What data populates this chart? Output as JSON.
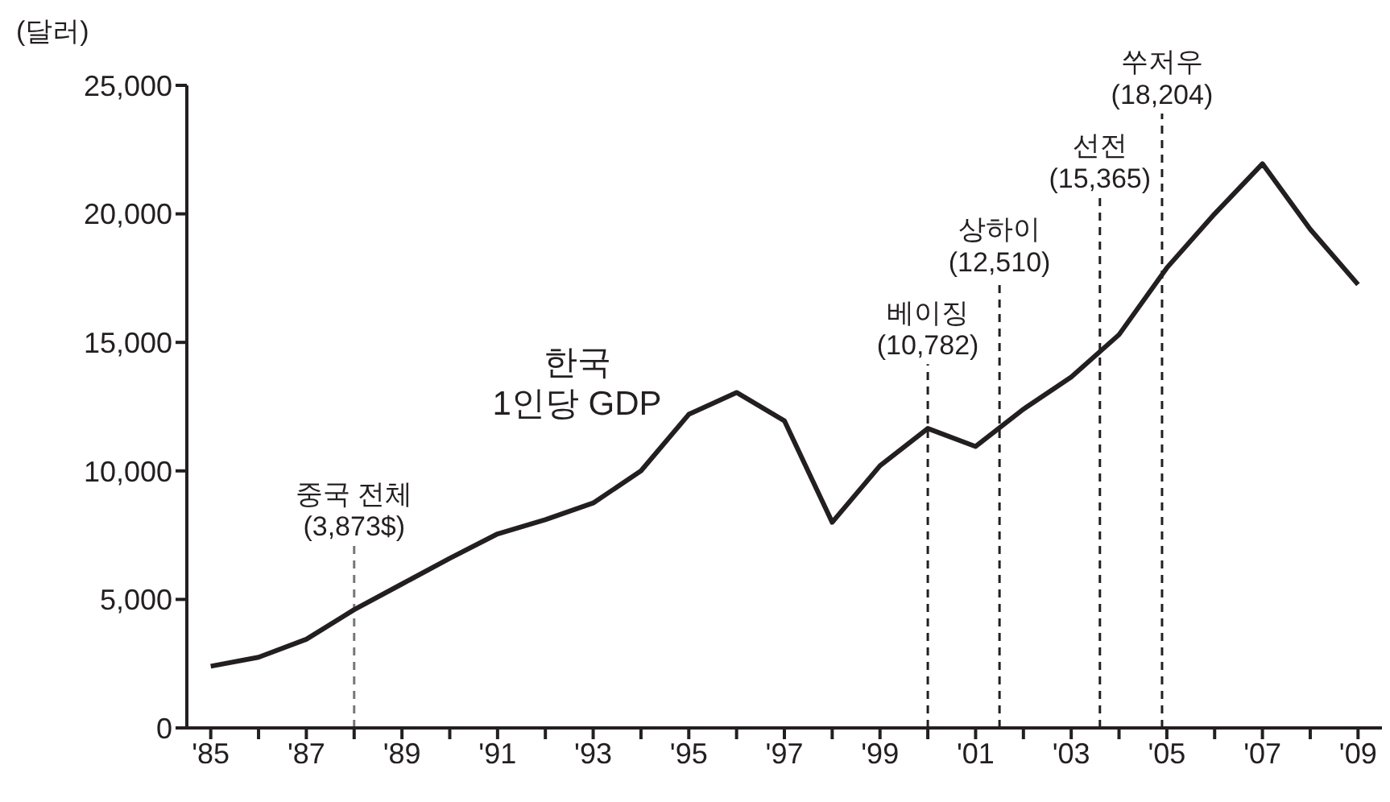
{
  "chart_data": {
    "type": "line",
    "ylabel": "(달러)",
    "x": [
      1985,
      1986,
      1987,
      1988,
      1989,
      1990,
      1991,
      1992,
      1993,
      1994,
      1995,
      1996,
      1997,
      1998,
      1999,
      2000,
      2001,
      2002,
      2003,
      2004,
      2005,
      2006,
      2007,
      2008,
      2009
    ],
    "series": [
      {
        "name": "한국\n1인당 GDP",
        "color": "#231f20",
        "values": [
          2400,
          2750,
          3450,
          4600,
          5600,
          6600,
          7550,
          8100,
          8750,
          10000,
          12200,
          13050,
          11950,
          8000,
          10200,
          11650,
          10950,
          12400,
          13650,
          15300,
          17900,
          20000,
          21950,
          19400,
          17250
        ]
      }
    ],
    "xlim": [
      1984.5,
      2009.5
    ],
    "xticks": [
      {
        "value": 1985,
        "label": "'85"
      },
      {
        "value": 1986,
        "label": null
      },
      {
        "value": 1987,
        "label": "'87"
      },
      {
        "value": 1988,
        "label": null
      },
      {
        "value": 1989,
        "label": "'89"
      },
      {
        "value": 1990,
        "label": null
      },
      {
        "value": 1991,
        "label": "'91"
      },
      {
        "value": 1992,
        "label": null
      },
      {
        "value": 1993,
        "label": "'93"
      },
      {
        "value": 1994,
        "label": null
      },
      {
        "value": 1995,
        "label": "'95"
      },
      {
        "value": 1996,
        "label": null
      },
      {
        "value": 1997,
        "label": "'97"
      },
      {
        "value": 1998,
        "label": null
      },
      {
        "value": 1999,
        "label": "'99"
      },
      {
        "value": 2000,
        "label": null
      },
      {
        "value": 2001,
        "label": "'01"
      },
      {
        "value": 2002,
        "label": null
      },
      {
        "value": 2003,
        "label": "'03"
      },
      {
        "value": 2004,
        "label": null
      },
      {
        "value": 2005,
        "label": "'05"
      },
      {
        "value": 2006,
        "label": null
      },
      {
        "value": 2007,
        "label": "'07"
      },
      {
        "value": 2008,
        "label": null
      },
      {
        "value": 2009,
        "label": "'09"
      }
    ],
    "ylim": [
      0,
      25000
    ],
    "yticks": [
      {
        "value": 0,
        "label": "0"
      },
      {
        "value": 5000,
        "label": "5,000"
      },
      {
        "value": 10000,
        "label": "10,000"
      },
      {
        "value": 15000,
        "label": "15,000"
      },
      {
        "value": 20000,
        "label": "20,000"
      },
      {
        "value": 25000,
        "label": "25,000"
      }
    ],
    "ref_lines": [
      {
        "axis": "x",
        "value": 1988,
        "label": "중국 전체\n(3,873$)",
        "color": "#777777",
        "line_style": "dashed"
      },
      {
        "axis": "x",
        "value": 2000,
        "label": "베이징\n(10,782)",
        "color": "#231f20",
        "line_style": "dashed"
      },
      {
        "axis": "x",
        "value": 2001.5,
        "label": "상하이\n(12,510)",
        "color": "#231f20",
        "line_style": "dashed"
      },
      {
        "axis": "x",
        "value": 2003.6,
        "label": "선전\n(15,365)",
        "color": "#231f20",
        "line_style": "dashed"
      },
      {
        "axis": "x",
        "value": 2004.9,
        "label": "쑤저우\n(18,204)",
        "color": "#231f20",
        "line_style": "dashed"
      }
    ],
    "grid": false,
    "legend": false,
    "marker": "none",
    "line_style": "solid"
  }
}
